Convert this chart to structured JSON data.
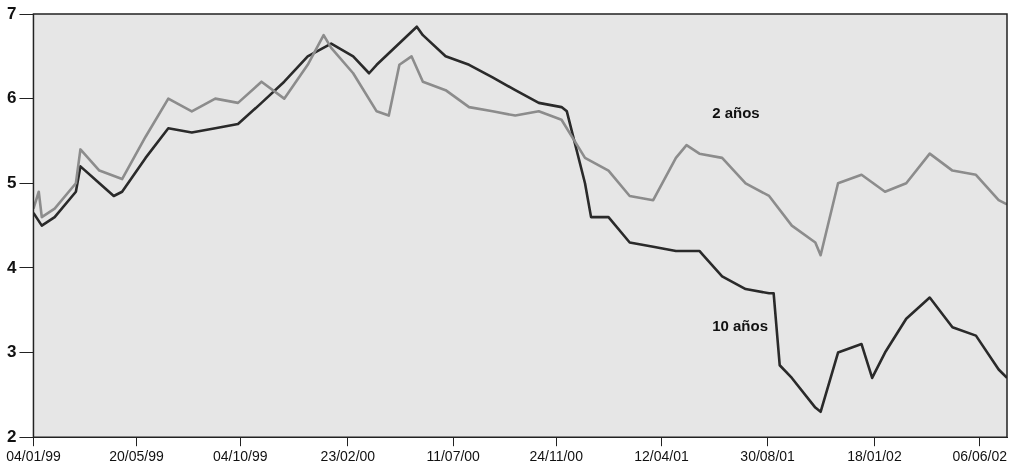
{
  "chart_data": {
    "type": "line",
    "xlim": [
      "1999-01-04",
      "2002-07-12"
    ],
    "ylim": [
      2,
      7
    ],
    "yticks": [
      2,
      3,
      4,
      5,
      6,
      7
    ],
    "xticks": [
      {
        "value": "1999-01-04",
        "label": "04/01/99"
      },
      {
        "value": "1999-05-20",
        "label": "20/05/99"
      },
      {
        "value": "1999-10-04",
        "label": "04/10/99"
      },
      {
        "value": "2000-02-23",
        "label": "23/02/00"
      },
      {
        "value": "2000-07-11",
        "label": "11/07/00"
      },
      {
        "value": "2000-11-24",
        "label": "24/11/00"
      },
      {
        "value": "2001-04-12",
        "label": "12/04/01"
      },
      {
        "value": "2001-08-30",
        "label": "30/08/01"
      },
      {
        "value": "2002-01-18",
        "label": "18/01/02"
      },
      {
        "value": "2002-06-06",
        "label": "06/06/02"
      }
    ],
    "grid": false,
    "legend": false,
    "marker": "none",
    "line_style": "solid",
    "series": [
      {
        "name": "2 años",
        "color": "#8c8c8c",
        "x": [
          "1999-01-04",
          "1999-01-11",
          "1999-01-15",
          "1999-02-01",
          "1999-03-01",
          "1999-03-07",
          "1999-04-01",
          "1999-05-01",
          "1999-06-01",
          "1999-07-01",
          "1999-08-01",
          "1999-09-01",
          "1999-10-01",
          "1999-11-01",
          "1999-12-01",
          "2000-01-01",
          "2000-01-22",
          "2000-02-01",
          "2000-03-01",
          "2000-04-01",
          "2000-04-17",
          "2000-05-01",
          "2000-05-17",
          "2000-06-01",
          "2000-07-01",
          "2000-08-01",
          "2000-09-01",
          "2000-10-01",
          "2000-11-01",
          "2000-12-01",
          "2001-01-01",
          "2001-02-01",
          "2001-03-01",
          "2001-04-01",
          "2001-05-01",
          "2001-05-15",
          "2001-06-01",
          "2001-07-01",
          "2001-08-01",
          "2001-09-01",
          "2001-10-01",
          "2001-11-01",
          "2001-11-08",
          "2001-12-01",
          "2002-01-01",
          "2002-02-01",
          "2002-03-01",
          "2002-04-01",
          "2002-05-01",
          "2002-06-01",
          "2002-07-01",
          "2002-07-12"
        ],
        "values": [
          4.7,
          4.9,
          4.6,
          4.7,
          5.0,
          5.4,
          5.15,
          5.05,
          5.55,
          6.0,
          5.85,
          6.0,
          5.95,
          6.2,
          6.0,
          6.4,
          6.75,
          6.6,
          6.3,
          5.85,
          5.8,
          6.4,
          6.5,
          6.2,
          6.1,
          5.9,
          5.85,
          5.8,
          5.85,
          5.75,
          5.3,
          5.15,
          4.85,
          4.8,
          5.3,
          5.45,
          5.35,
          5.3,
          5.0,
          4.85,
          4.5,
          4.3,
          4.15,
          5.0,
          5.1,
          4.9,
          5.0,
          5.35,
          5.15,
          5.1,
          4.8,
          4.75
        ]
      },
      {
        "name": "10 años",
        "color": "#2a2a2a",
        "x": [
          "1999-01-04",
          "1999-01-15",
          "1999-02-01",
          "1999-03-01",
          "1999-03-07",
          "1999-04-01",
          "1999-04-20",
          "1999-05-01",
          "1999-06-01",
          "1999-07-01",
          "1999-08-01",
          "1999-09-01",
          "1999-10-01",
          "1999-11-01",
          "1999-12-01",
          "2000-01-01",
          "2000-02-01",
          "2000-03-01",
          "2000-03-22",
          "2000-04-01",
          "2000-05-24",
          "2000-06-01",
          "2000-07-01",
          "2000-08-01",
          "2000-09-01",
          "2000-10-01",
          "2000-11-01",
          "2000-12-01",
          "2000-12-08",
          "2001-01-01",
          "2001-01-09",
          "2001-02-01",
          "2001-03-01",
          "2001-04-01",
          "2001-05-01",
          "2001-06-01",
          "2001-07-01",
          "2001-08-01",
          "2001-09-01",
          "2001-09-07",
          "2001-09-15",
          "2001-10-01",
          "2001-11-01",
          "2001-11-08",
          "2001-12-01",
          "2002-01-01",
          "2002-01-15",
          "2002-02-01",
          "2002-03-01",
          "2002-04-01",
          "2002-05-01",
          "2002-06-01",
          "2002-07-01",
          "2002-07-12"
        ],
        "values": [
          4.65,
          4.5,
          4.6,
          4.9,
          5.2,
          5.0,
          4.85,
          4.9,
          5.3,
          5.65,
          5.6,
          5.65,
          5.7,
          5.95,
          6.2,
          6.5,
          6.65,
          6.5,
          6.3,
          6.4,
          6.85,
          6.75,
          6.5,
          6.4,
          6.25,
          6.1,
          5.95,
          5.9,
          5.85,
          5.0,
          4.6,
          4.6,
          4.3,
          4.25,
          4.2,
          4.2,
          3.9,
          3.75,
          3.7,
          3.7,
          2.85,
          2.7,
          2.35,
          2.3,
          3.0,
          3.1,
          2.7,
          3.0,
          3.4,
          3.65,
          3.3,
          3.2,
          2.8,
          2.7
        ]
      }
    ]
  }
}
